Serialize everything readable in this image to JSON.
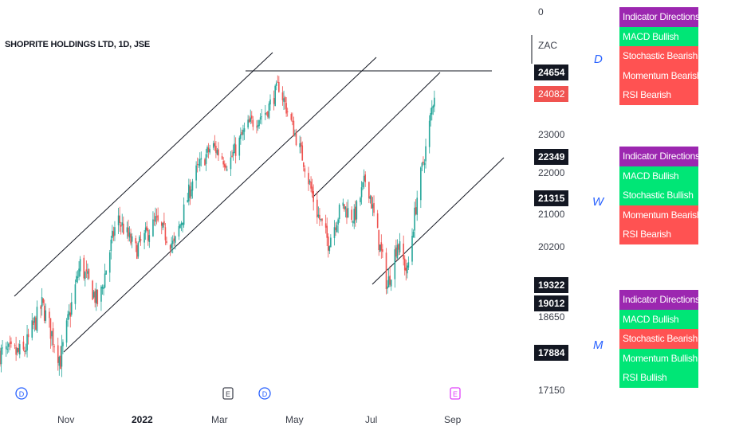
{
  "title": "SHOPRITE HOLDINGS LTD, 1D, JSE",
  "currency_label": "ZAC",
  "top_axis_value": "0",
  "chart_data": {
    "type": "candlestick",
    "title": "SHOPRITE HOLDINGS LTD, 1D, JSE",
    "y_axis_labels": [
      "23000",
      "22000",
      "21000",
      "20200",
      "18650",
      "17150"
    ],
    "x_axis_labels": [
      "Nov",
      "2022",
      "Mar",
      "May",
      "Jul",
      "Sep"
    ],
    "price_tags": [
      {
        "value": "24654",
        "style": "dark"
      },
      {
        "value": "24082",
        "style": "red"
      },
      {
        "value": "22349",
        "style": "dark"
      },
      {
        "value": "21315",
        "style": "dark"
      },
      {
        "value": "19322",
        "style": "dark"
      },
      {
        "value": "19012",
        "style": "dark"
      },
      {
        "value": "17884",
        "style": "dark"
      }
    ],
    "up_color": "#26a69a",
    "down_color": "#ef5350",
    "price_path": [
      {
        "date": "2021-09-20",
        "close": 17900
      },
      {
        "date": "2021-10-05",
        "close": 18900
      },
      {
        "date": "2021-10-20",
        "close": 17750
      },
      {
        "date": "2021-11-05",
        "close": 19800
      },
      {
        "date": "2021-11-20",
        "close": 18900
      },
      {
        "date": "2021-12-05",
        "close": 20900
      },
      {
        "date": "2021-12-20",
        "close": 20100
      },
      {
        "date": "2022-01-05",
        "close": 20800
      },
      {
        "date": "2022-01-20",
        "close": 20200
      },
      {
        "date": "2022-02-05",
        "close": 21900
      },
      {
        "date": "2022-02-20",
        "close": 22700
      },
      {
        "date": "2022-03-05",
        "close": 22200
      },
      {
        "date": "2022-03-20",
        "close": 23200
      },
      {
        "date": "2022-04-05",
        "close": 23600
      },
      {
        "date": "2022-04-15",
        "close": 24300
      },
      {
        "date": "2022-04-25",
        "close": 23300
      },
      {
        "date": "2022-05-05",
        "close": 22300
      },
      {
        "date": "2022-05-15",
        "close": 21100
      },
      {
        "date": "2022-05-25",
        "close": 20300
      },
      {
        "date": "2022-06-05",
        "close": 21200
      },
      {
        "date": "2022-06-15",
        "close": 20900
      },
      {
        "date": "2022-06-25",
        "close": 21900
      },
      {
        "date": "2022-07-05",
        "close": 20300
      },
      {
        "date": "2022-07-12",
        "close": 19300
      },
      {
        "date": "2022-07-20",
        "close": 20300
      },
      {
        "date": "2022-07-28",
        "close": 19600
      },
      {
        "date": "2022-08-05",
        "close": 21400
      },
      {
        "date": "2022-08-12",
        "close": 22600
      },
      {
        "date": "2022-08-19",
        "close": 24100
      }
    ],
    "annotations": [
      {
        "label": "D",
        "kind": "dividend",
        "date": "2021-09-25"
      },
      {
        "label": "E",
        "kind": "earnings",
        "date": "2022-03-05"
      },
      {
        "label": "D",
        "kind": "dividend",
        "date": "2022-04-05"
      },
      {
        "label": "E",
        "kind": "earnings",
        "date": "2022-08-25"
      }
    ]
  },
  "indicator_panels": [
    {
      "timeframe": "D",
      "header": "Indicator Directions",
      "rows": [
        {
          "label": "MACD Bullish",
          "state": "bullish"
        },
        {
          "label": "Stochastic Bearish",
          "state": "bearish"
        },
        {
          "label": "Momentum Bearish",
          "state": "bearish"
        },
        {
          "label": "RSI Bearish",
          "state": "bearish"
        }
      ]
    },
    {
      "timeframe": "W",
      "header": "Indicator Directions",
      "rows": [
        {
          "label": "MACD Bullish",
          "state": "bullish"
        },
        {
          "label": "Stochastic Bullish",
          "state": "bullish"
        },
        {
          "label": "Momentum Bearish",
          "state": "bearish"
        },
        {
          "label": "RSI Bearish",
          "state": "bearish"
        }
      ]
    },
    {
      "timeframe": "M",
      "header": "Indicator Directions",
      "rows": [
        {
          "label": "MACD Bullish",
          "state": "bullish"
        },
        {
          "label": "Stochastic Bearish",
          "state": "bearish"
        },
        {
          "label": "Momentum Bullish",
          "state": "bullish"
        },
        {
          "label": "RSI Bullish",
          "state": "bullish"
        }
      ]
    }
  ],
  "colors": {
    "header": "#9c27b0",
    "bullish": "#00e676",
    "bearish": "#ff5252",
    "timeframe_letter": "#2962ff",
    "dividend_marker": "#2962ff",
    "earnings_marker_1": "#434651",
    "earnings_marker_2": "#e040fb"
  }
}
